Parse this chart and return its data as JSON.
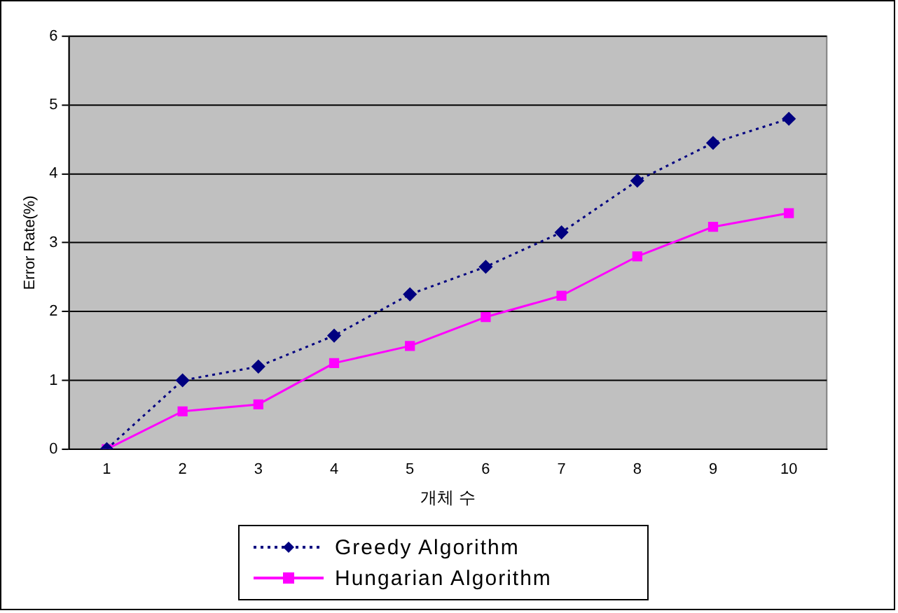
{
  "chart_data": {
    "type": "line",
    "xlabel": "개체 수",
    "ylabel": "Error Rate(%)",
    "categories": [
      "1",
      "2",
      "3",
      "4",
      "5",
      "6",
      "7",
      "8",
      "9",
      "10"
    ],
    "series": [
      {
        "name": "Greedy Algorithm",
        "color": "#000080",
        "marker": "diamond",
        "line_style": "dotted",
        "values": [
          0,
          1.0,
          1.2,
          1.65,
          2.25,
          2.65,
          3.15,
          3.9,
          4.45,
          4.8
        ]
      },
      {
        "name": "Hungarian Algorithm",
        "color": "#ff00ff",
        "marker": "square",
        "line_style": "solid",
        "values": [
          0,
          0.55,
          0.65,
          1.25,
          1.5,
          1.92,
          2.23,
          2.8,
          3.23,
          3.43
        ]
      }
    ],
    "ylim": [
      0,
      6
    ],
    "yticks": [
      0,
      1,
      2,
      3,
      4,
      5,
      6
    ],
    "grid": "y",
    "legend": "bottom"
  }
}
